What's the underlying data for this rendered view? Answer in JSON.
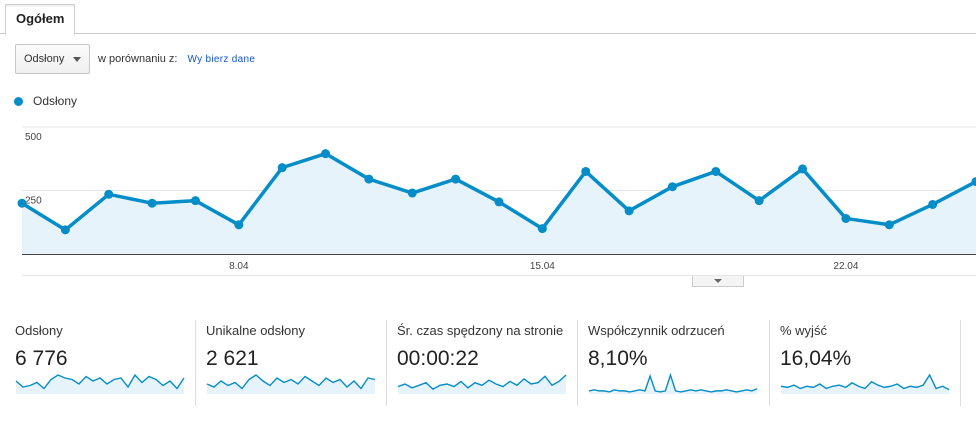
{
  "tab": {
    "label": "Ogółem"
  },
  "toolbar": {
    "metric_select": "Odsłony",
    "compare_text": "w porównaniu z:",
    "pick_link": "Wy bierz dane"
  },
  "legend": {
    "series_name": "Odsłony"
  },
  "colors": {
    "line": "#058dc7",
    "fill": "#e6f3fa",
    "grid": "#e5e5e5"
  },
  "icons": {
    "dropdown": "chevron-down-icon",
    "handle": "chevron-down-icon"
  },
  "chart_data": {
    "type": "area",
    "title": "",
    "xlabel": "",
    "ylabel": "",
    "ylim": [
      0,
      500
    ],
    "yticks": [
      250,
      500
    ],
    "ytick_labels": [
      "250",
      "500"
    ],
    "xtick_labels": [
      {
        "label": "8.04",
        "day": 8
      },
      {
        "label": "15.04",
        "day": 15
      },
      {
        "label": "22.04",
        "day": 22
      }
    ],
    "x": [
      3,
      4,
      5,
      6,
      7,
      8,
      9,
      10,
      11,
      12,
      13,
      14,
      15,
      16,
      17,
      18,
      19,
      20,
      21,
      22,
      23,
      24,
      25
    ],
    "series": [
      {
        "name": "Odsłony",
        "values": [
          200,
          95,
          235,
          200,
          210,
          115,
          340,
          395,
          295,
          240,
          295,
          205,
          100,
          325,
          170,
          265,
          325,
          210,
          335,
          140,
          115,
          195,
          285
        ]
      }
    ],
    "grid": true
  },
  "metrics": [
    {
      "label": "Odsłony",
      "value": "6 776",
      "spark": [
        8,
        4,
        5,
        7,
        3,
        9,
        12,
        10,
        9,
        6,
        11,
        8,
        10,
        6,
        9,
        10,
        4,
        12,
        7,
        11,
        9,
        5,
        8,
        3,
        10
      ]
    },
    {
      "label": "Unikalne odsłony",
      "value": "2 621",
      "spark": [
        6,
        4,
        8,
        5,
        7,
        3,
        9,
        12,
        8,
        5,
        10,
        7,
        9,
        6,
        11,
        8,
        5,
        10,
        7,
        9,
        4,
        8,
        3,
        10,
        9
      ]
    },
    {
      "label": "Śr. czas spędzony na stronie",
      "value": "00:00:22",
      "spark": [
        5,
        7,
        4,
        6,
        8,
        3,
        6,
        7,
        5,
        9,
        4,
        8,
        6,
        10,
        7,
        5,
        9,
        6,
        11,
        7,
        8,
        13,
        6,
        9,
        14
      ]
    },
    {
      "label": "Współczynnik odrzuceń",
      "value": "8,10%",
      "spark": [
        2,
        3,
        2,
        2,
        1,
        3,
        2,
        2,
        1,
        2,
        3,
        2,
        16,
        2,
        1,
        2,
        17,
        2,
        1,
        2,
        3,
        2,
        3,
        2,
        1,
        2,
        2,
        3,
        2,
        1,
        2,
        3,
        2,
        4
      ]
    },
    {
      "label": "% wyjść",
      "value": "16,04%",
      "spark": [
        6,
        5,
        7,
        4,
        6,
        5,
        8,
        4,
        6,
        7,
        5,
        9,
        6,
        4,
        10,
        7,
        5,
        6,
        8,
        4,
        6,
        5,
        7,
        16,
        4,
        6,
        3
      ]
    }
  ]
}
